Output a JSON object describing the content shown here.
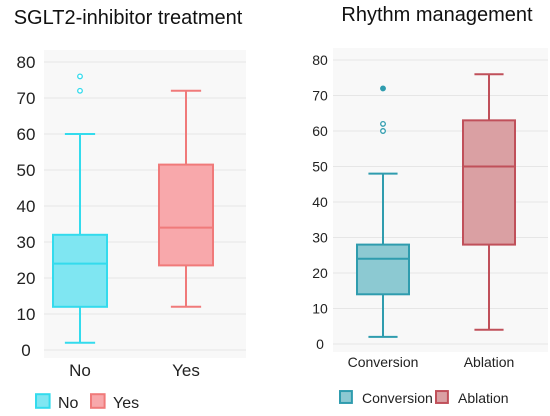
{
  "chart_data": [
    {
      "type": "box",
      "title": "SGLT2-inhibitor treatment",
      "categories": [
        "No",
        "Yes"
      ],
      "ylim": [
        0,
        80
      ],
      "yticks": [
        0,
        10,
        20,
        30,
        40,
        50,
        60,
        70,
        80
      ],
      "grid": true,
      "legend": "bottom",
      "series": [
        {
          "name": "No",
          "color": "#33dbed",
          "fill": "#7fe6f2",
          "min": 2,
          "q1": 12,
          "median": 24,
          "q3": 32,
          "max": 60,
          "outliers": [
            72,
            76
          ],
          "filled_outliers": []
        },
        {
          "name": "Yes",
          "color": "#f07a7a",
          "fill": "#f8a8ab",
          "min": 12,
          "q1": 23.5,
          "median": 34,
          "q3": 51.5,
          "max": 72,
          "outliers": [],
          "filled_outliers": []
        }
      ]
    },
    {
      "type": "box",
      "title": "Rhythm management",
      "categories": [
        "Conversion",
        "Ablation"
      ],
      "ylim": [
        0,
        80
      ],
      "yticks": [
        0,
        10,
        20,
        30,
        40,
        50,
        60,
        70,
        80
      ],
      "grid": true,
      "legend": "bottom",
      "series": [
        {
          "name": "Conversion",
          "color": "#2f9cae",
          "fill": "#8cc9d2",
          "min": 2,
          "q1": 14,
          "median": 24,
          "q3": 28,
          "max": 48,
          "outliers": [
            60,
            62
          ],
          "filled_outliers": [
            72
          ]
        },
        {
          "name": "Ablation",
          "color": "#c0505a",
          "fill": "#daa0a3",
          "min": 4,
          "q1": 28,
          "median": 50,
          "q3": 63,
          "max": 76,
          "outliers": [],
          "filled_outliers": []
        }
      ]
    }
  ]
}
